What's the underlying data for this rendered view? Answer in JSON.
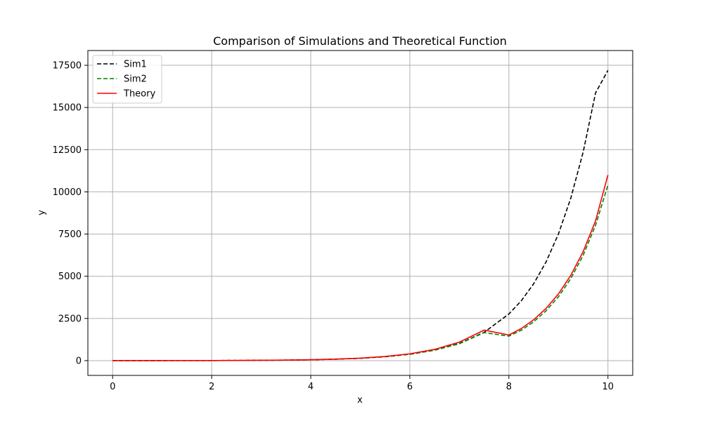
{
  "chart_data": {
    "type": "line",
    "title": "Comparison of Simulations and Theoretical Function",
    "xlabel": "x",
    "ylabel": "y",
    "xlim": [
      -0.5,
      10.5
    ],
    "ylim": [
      -875,
      18375
    ],
    "xticks": [
      0,
      2,
      4,
      6,
      8,
      10
    ],
    "yticks": [
      0,
      2500,
      5000,
      7500,
      10000,
      12500,
      15000,
      17500
    ],
    "grid": true,
    "legend_position": "top-left",
    "x": [
      0,
      0.5,
      1,
      1.5,
      2,
      2.5,
      3,
      3.5,
      4,
      4.5,
      5,
      5.5,
      6,
      6.5,
      7,
      7.5,
      8,
      8.25,
      8.5,
      8.75,
      9,
      9.25,
      9.5,
      9.75,
      10
    ],
    "series": [
      {
        "name": "Sim1",
        "color": "#000000",
        "dash": true,
        "values": [
          1,
          1.6,
          2.6,
          4.3,
          7,
          11.5,
          19,
          31,
          51,
          84,
          138,
          228,
          375,
          618,
          1018,
          1677,
          2762,
          3545,
          4550,
          5842,
          7500,
          9626,
          12358,
          15863,
          17200
        ]
      },
      {
        "name": "Sim2",
        "color": "#008000",
        "dash": true,
        "values": [
          1,
          1.6,
          2.7,
          4.4,
          7.3,
          12,
          19.6,
          32,
          53,
          87,
          143,
          235,
          380,
          620,
          1000,
          1660,
          1452,
          1800,
          2300,
          2950,
          3780,
          4860,
          6240,
          8020,
          10400
        ]
      },
      {
        "name": "Theory",
        "color": "#ff0000",
        "dash": false,
        "values": [
          1,
          1.65,
          2.72,
          4.48,
          7.39,
          12.18,
          20.09,
          33.12,
          54.6,
          90.02,
          148.4,
          244.7,
          403.4,
          665.1,
          1096.6,
          1808,
          1520,
          1900,
          2420,
          3090,
          3950,
          5050,
          6460,
          8280,
          11000
        ]
      }
    ]
  }
}
